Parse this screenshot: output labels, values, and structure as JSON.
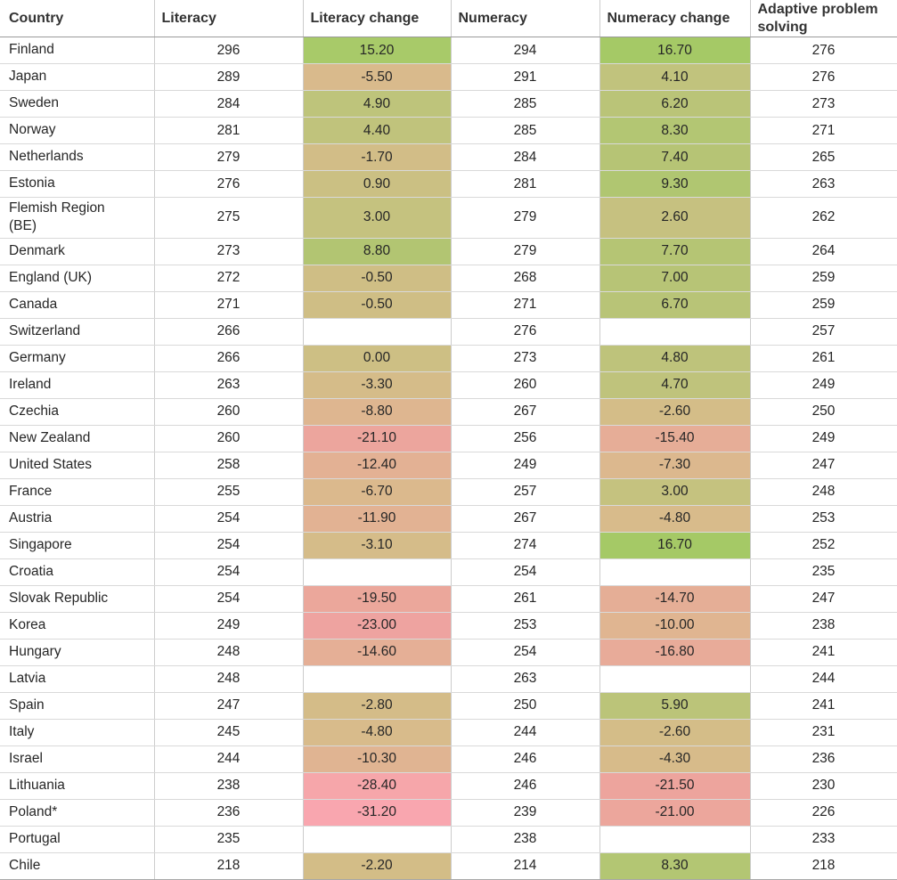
{
  "chart_data": {
    "type": "table",
    "columns": [
      "Country",
      "Literacy",
      "Literacy change",
      "Numeracy",
      "Numeracy change",
      "Adaptive problem solving"
    ],
    "color_scale": {
      "positive_max": "#a5c966",
      "zero": "#cdbf84",
      "negative_min": "#f9a6af",
      "empty": "#ffffff"
    },
    "rows": [
      {
        "country": "Finland",
        "literacy": "296",
        "literacy_change": "15.20",
        "literacy_change_color": "#a8ca69",
        "numeracy": "294",
        "numeracy_change": "16.70",
        "numeracy_change_color": "#a5c966",
        "adaptive_problem_solving": "276"
      },
      {
        "country": "Japan",
        "literacy": "289",
        "literacy_change": "-5.50",
        "literacy_change_color": "#d9ba8c",
        "numeracy": "291",
        "numeracy_change": "4.10",
        "numeracy_change_color": "#c1c37d",
        "adaptive_problem_solving": "276"
      },
      {
        "country": "Sweden",
        "literacy": "284",
        "literacy_change": "4.90",
        "literacy_change_color": "#bec47b",
        "numeracy": "285",
        "numeracy_change": "6.20",
        "numeracy_change_color": "#bac478",
        "adaptive_problem_solving": "273"
      },
      {
        "country": "Norway",
        "literacy": "281",
        "literacy_change": "4.40",
        "literacy_change_color": "#c0c37c",
        "numeracy": "285",
        "numeracy_change": "8.30",
        "numeracy_change_color": "#b3c673",
        "adaptive_problem_solving": "271"
      },
      {
        "country": "Netherlands",
        "literacy": "279",
        "literacy_change": "-1.70",
        "literacy_change_color": "#d2bd87",
        "numeracy": "284",
        "numeracy_change": "7.40",
        "numeracy_change_color": "#b6c475",
        "adaptive_problem_solving": "265"
      },
      {
        "country": "Estonia",
        "literacy": "276",
        "literacy_change": "0.90",
        "literacy_change_color": "#cbc083",
        "numeracy": "281",
        "numeracy_change": "9.30",
        "numeracy_change_color": "#b0c671",
        "adaptive_problem_solving": "263"
      },
      {
        "country": "Flemish Region (BE)",
        "literacy": "275",
        "literacy_change": "3.00",
        "literacy_change_color": "#c5c27f",
        "numeracy": "279",
        "numeracy_change": "2.60",
        "numeracy_change_color": "#c6c180",
        "adaptive_problem_solving": "262"
      },
      {
        "country": "Denmark",
        "literacy": "273",
        "literacy_change": "8.80",
        "literacy_change_color": "#b2c572",
        "numeracy": "279",
        "numeracy_change": "7.70",
        "numeracy_change_color": "#b5c574",
        "adaptive_problem_solving": "264"
      },
      {
        "country": "England (UK)",
        "literacy": "272",
        "literacy_change": "-0.50",
        "literacy_change_color": "#cfbe85",
        "numeracy": "268",
        "numeracy_change": "7.00",
        "numeracy_change_color": "#b7c476",
        "adaptive_problem_solving": "259"
      },
      {
        "country": "Canada",
        "literacy": "271",
        "literacy_change": "-0.50",
        "literacy_change_color": "#cfbe85",
        "numeracy": "271",
        "numeracy_change": "6.70",
        "numeracy_change_color": "#b8c477",
        "adaptive_problem_solving": "259"
      },
      {
        "country": "Switzerland",
        "literacy": "266",
        "literacy_change": null,
        "literacy_change_color": null,
        "numeracy": "276",
        "numeracy_change": null,
        "numeracy_change_color": null,
        "adaptive_problem_solving": "257"
      },
      {
        "country": "Germany",
        "literacy": "266",
        "literacy_change": "0.00",
        "literacy_change_color": "#cdbf84",
        "numeracy": "273",
        "numeracy_change": "4.80",
        "numeracy_change_color": "#bec37b",
        "adaptive_problem_solving": "261"
      },
      {
        "country": "Ireland",
        "literacy": "263",
        "literacy_change": "-3.30",
        "literacy_change_color": "#d5bc89",
        "numeracy": "260",
        "numeracy_change": "4.70",
        "numeracy_change_color": "#bfc37c",
        "adaptive_problem_solving": "249"
      },
      {
        "country": "Czechia",
        "literacy": "260",
        "literacy_change": "-8.80",
        "literacy_change_color": "#deb690",
        "numeracy": "267",
        "numeracy_change": "-2.60",
        "numeracy_change_color": "#d4bd88",
        "adaptive_problem_solving": "250"
      },
      {
        "country": "New Zealand",
        "literacy": "260",
        "literacy_change": "-21.10",
        "literacy_change_color": "#eca59d",
        "numeracy": "256",
        "numeracy_change": "-15.40",
        "numeracy_change_color": "#e6ad97",
        "adaptive_problem_solving": "249"
      },
      {
        "country": "United States",
        "literacy": "258",
        "literacy_change": "-12.40",
        "literacy_change_color": "#e3b194",
        "numeracy": "249",
        "numeracy_change": "-7.30",
        "numeracy_change_color": "#dcb88e",
        "adaptive_problem_solving": "247"
      },
      {
        "country": "France",
        "literacy": "255",
        "literacy_change": "-6.70",
        "literacy_change_color": "#dbb98d",
        "numeracy": "257",
        "numeracy_change": "3.00",
        "numeracy_change_color": "#c5c27f",
        "adaptive_problem_solving": "248"
      },
      {
        "country": "Austria",
        "literacy": "254",
        "literacy_change": "-11.90",
        "literacy_change_color": "#e2b293",
        "numeracy": "267",
        "numeracy_change": "-4.80",
        "numeracy_change_color": "#d8bb8b",
        "adaptive_problem_solving": "253"
      },
      {
        "country": "Singapore",
        "literacy": "254",
        "literacy_change": "-3.10",
        "literacy_change_color": "#d5bc89",
        "numeracy": "274",
        "numeracy_change": "16.70",
        "numeracy_change_color": "#a5c966",
        "adaptive_problem_solving": "252"
      },
      {
        "country": "Croatia",
        "literacy": "254",
        "literacy_change": null,
        "literacy_change_color": null,
        "numeracy": "254",
        "numeracy_change": null,
        "numeracy_change_color": null,
        "adaptive_problem_solving": "235"
      },
      {
        "country": "Slovak Republic",
        "literacy": "254",
        "literacy_change": "-19.50",
        "literacy_change_color": "#eba79b",
        "numeracy": "261",
        "numeracy_change": "-14.70",
        "numeracy_change_color": "#e5ae96",
        "adaptive_problem_solving": "247"
      },
      {
        "country": "Korea",
        "literacy": "249",
        "literacy_change": "-23.00",
        "literacy_change_color": "#eea3a0",
        "numeracy": "253",
        "numeracy_change": "-10.00",
        "numeracy_change_color": "#e0b591",
        "adaptive_problem_solving": "238"
      },
      {
        "country": "Hungary",
        "literacy": "248",
        "literacy_change": "-14.60",
        "literacy_change_color": "#e5af96",
        "numeracy": "254",
        "numeracy_change": "-16.80",
        "numeracy_change_color": "#e8ab99",
        "adaptive_problem_solving": "241"
      },
      {
        "country": "Latvia",
        "literacy": "248",
        "literacy_change": null,
        "literacy_change_color": null,
        "numeracy": "263",
        "numeracy_change": null,
        "numeracy_change_color": null,
        "adaptive_problem_solving": "244"
      },
      {
        "country": "Spain",
        "literacy": "247",
        "literacy_change": "-2.80",
        "literacy_change_color": "#d4bc88",
        "numeracy": "250",
        "numeracy_change": "5.90",
        "numeracy_change_color": "#bbc479",
        "adaptive_problem_solving": "241"
      },
      {
        "country": "Italy",
        "literacy": "245",
        "literacy_change": "-4.80",
        "literacy_change_color": "#d8bb8b",
        "numeracy": "244",
        "numeracy_change": "-2.60",
        "numeracy_change_color": "#d4bd88",
        "adaptive_problem_solving": "231"
      },
      {
        "country": "Israel",
        "literacy": "244",
        "literacy_change": "-10.30",
        "literacy_change_color": "#e0b492",
        "numeracy": "246",
        "numeracy_change": "-4.30",
        "numeracy_change_color": "#d7bb8a",
        "adaptive_problem_solving": "236"
      },
      {
        "country": "Lithuania",
        "literacy": "238",
        "literacy_change": "-28.40",
        "literacy_change_color": "#f6a6aa",
        "numeracy": "246",
        "numeracy_change": "-21.50",
        "numeracy_change_color": "#eda49d",
        "adaptive_problem_solving": "230"
      },
      {
        "country": "Poland*",
        "literacy": "236",
        "literacy_change": "-31.20",
        "literacy_change_color": "#f9a6af",
        "numeracy": "239",
        "numeracy_change": "-21.00",
        "numeracy_change_color": "#eca69c",
        "adaptive_problem_solving": "226"
      },
      {
        "country": "Portugal",
        "literacy": "235",
        "literacy_change": null,
        "literacy_change_color": null,
        "numeracy": "238",
        "numeracy_change": null,
        "numeracy_change_color": null,
        "adaptive_problem_solving": "233"
      },
      {
        "country": "Chile",
        "literacy": "218",
        "literacy_change": "-2.20",
        "literacy_change_color": "#d3bd87",
        "numeracy": "214",
        "numeracy_change": "8.30",
        "numeracy_change_color": "#b3c673",
        "adaptive_problem_solving": "218"
      }
    ]
  },
  "style": {
    "header_text": "#333333",
    "body_text": "#262626",
    "row_border": "#d9d9d9",
    "column_border": "#cccccc",
    "header_border": "#9a9a9a",
    "bottom_border": "#a8a8a8",
    "background": "#ffffff"
  }
}
